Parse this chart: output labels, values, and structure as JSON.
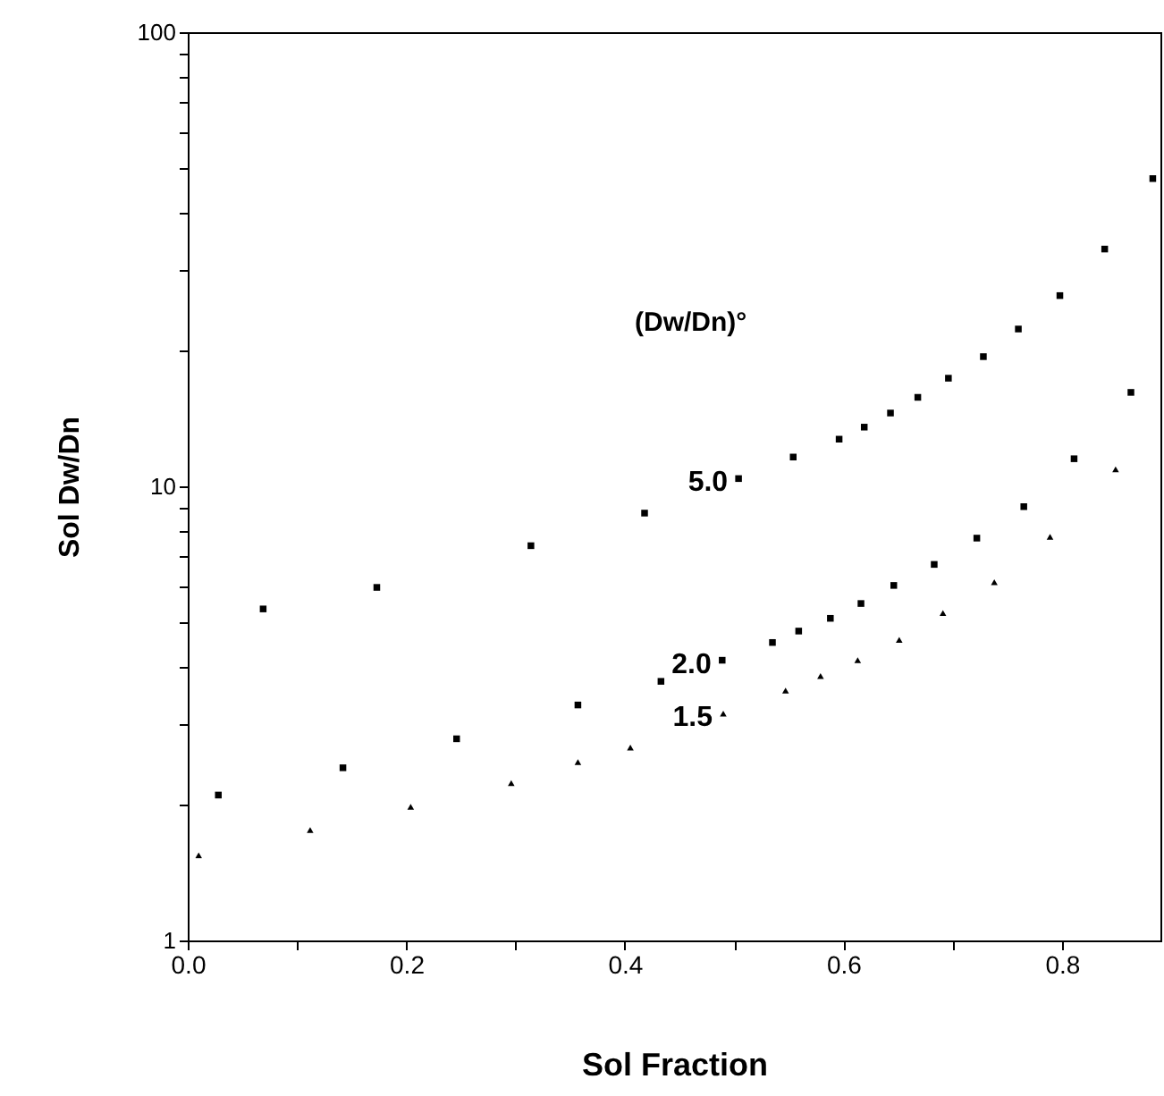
{
  "chart_data": {
    "type": "scatter",
    "xlabel": "Sol  Fraction",
    "ylabel": "Sol Dw/Dn",
    "legend_title": "(Dw/Dn)°",
    "log": "y",
    "grid": false,
    "legend": false,
    "xlim": [
      0,
      0.89
    ],
    "ylim": [
      1,
      100
    ],
    "xticks": [
      {
        "value": 0,
        "label": "0.0"
      },
      {
        "value": 0.1,
        "label": null
      },
      {
        "value": 0.2,
        "label": "0.2"
      },
      {
        "value": 0.3,
        "label": null
      },
      {
        "value": 0.4,
        "label": "0.4"
      },
      {
        "value": 0.5,
        "label": null
      },
      {
        "value": 0.6,
        "label": "0.6"
      },
      {
        "value": 0.7,
        "label": null
      },
      {
        "value": 0.8,
        "label": "0.8"
      }
    ],
    "yticks": [
      1,
      {
        "value": 2,
        "label": null
      },
      {
        "value": 3,
        "label": null
      },
      {
        "value": 4,
        "label": null
      },
      {
        "value": 5,
        "label": null
      },
      {
        "value": 6,
        "label": null
      },
      {
        "value": 7,
        "label": null
      },
      {
        "value": 8,
        "label": null
      },
      {
        "value": 9,
        "label": null
      },
      10,
      {
        "value": 20,
        "label": null
      },
      {
        "value": 30,
        "label": null
      },
      {
        "value": 40,
        "label": null
      },
      {
        "value": 50,
        "label": null
      },
      {
        "value": 60,
        "label": null
      },
      {
        "value": 70,
        "label": null
      },
      {
        "value": 80,
        "label": null
      },
      {
        "value": 90,
        "label": null
      },
      100
    ],
    "series": [
      {
        "name": "5.0",
        "color": "#000000",
        "marker": "square",
        "x": [
          0.069,
          0.173,
          0.314,
          0.418,
          0.504,
          0.554,
          0.596,
          0.619,
          0.643,
          0.668,
          0.696,
          0.728,
          0.76,
          0.798,
          0.839,
          0.883
        ],
        "values": [
          5.37,
          5.99,
          7.4,
          8.73,
          10.4,
          11.6,
          12.7,
          13.5,
          14.5,
          15.7,
          17.3,
          19.3,
          22.2,
          26.3,
          33.3,
          47.6
        ]
      },
      {
        "name": "2.0",
        "color": "#000000",
        "marker": "square",
        "x": [
          0.028,
          0.142,
          0.246,
          0.357,
          0.433,
          0.489,
          0.535,
          0.559,
          0.588,
          0.616,
          0.646,
          0.683,
          0.722,
          0.765,
          0.811,
          0.863
        ],
        "values": [
          2.09,
          2.4,
          2.78,
          3.3,
          3.72,
          4.14,
          4.53,
          4.8,
          5.12,
          5.52,
          6.05,
          6.73,
          7.69,
          9.02,
          11.5,
          16.1
        ]
      },
      {
        "name": "1.5",
        "color": "#000000",
        "marker": "triangle",
        "x": [
          0.01,
          0.112,
          0.204,
          0.296,
          0.357,
          0.405,
          0.49,
          0.547,
          0.579,
          0.613,
          0.651,
          0.691,
          0.738,
          0.789,
          0.849
        ],
        "values": [
          1.54,
          1.75,
          1.97,
          2.22,
          2.47,
          2.66,
          3.16,
          3.55,
          3.82,
          4.14,
          4.59,
          5.26,
          6.15,
          7.74,
          10.9
        ]
      }
    ]
  }
}
